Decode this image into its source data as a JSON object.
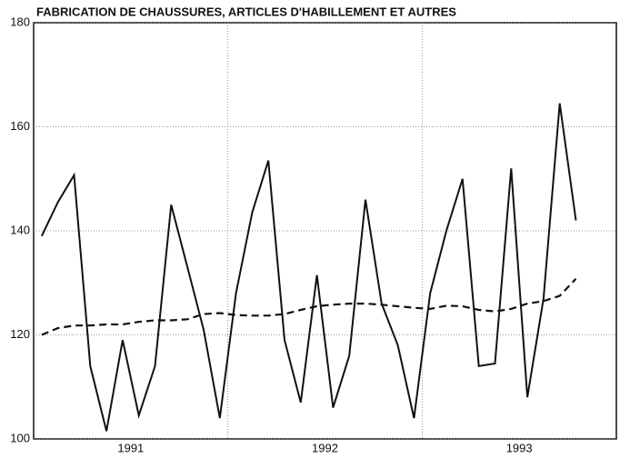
{
  "chart_data": {
    "type": "line",
    "title": "FABRICATION DE CHAUSSURES, ARTICLES D'HABILLEMENT ET AUTRES",
    "categories": [
      null,
      null,
      null,
      null,
      null,
      null,
      null,
      null,
      null,
      null,
      null,
      null,
      null,
      null,
      null,
      null,
      null,
      null,
      null,
      null,
      null,
      null,
      null,
      null,
      null,
      null,
      null,
      null,
      null,
      null,
      null,
      null,
      null,
      null
    ],
    "year_labels": [
      "1991",
      "1992",
      "1993"
    ],
    "series": [
      {
        "color": "#111111",
        "dashed": false,
        "values": [
          139,
          145.5,
          150.7,
          114,
          101.5,
          119,
          104.5,
          114,
          145,
          133,
          121,
          104,
          128,
          143.5,
          153.5,
          119,
          107,
          131.5,
          106,
          116,
          146,
          126,
          118,
          104,
          128,
          140,
          150,
          114,
          114.5,
          152,
          108,
          127,
          164.5,
          142
        ]
      },
      {
        "color": "#111111",
        "dashed": true,
        "values": [
          120,
          121.3,
          121.8,
          121.8,
          122,
          122,
          122.5,
          122.8,
          122.8,
          123,
          124,
          124.2,
          123.8,
          123.7,
          123.7,
          124,
          124.8,
          125.5,
          125.8,
          126,
          126,
          125.8,
          125.5,
          125.2,
          125,
          125.6,
          125.5,
          124.8,
          124.5,
          125,
          126,
          126.5,
          127.5,
          130.8
        ]
      }
    ],
    "ylim": [
      100,
      180
    ],
    "yticks": [
      100,
      120,
      140,
      160,
      180
    ],
    "grid": true
  }
}
